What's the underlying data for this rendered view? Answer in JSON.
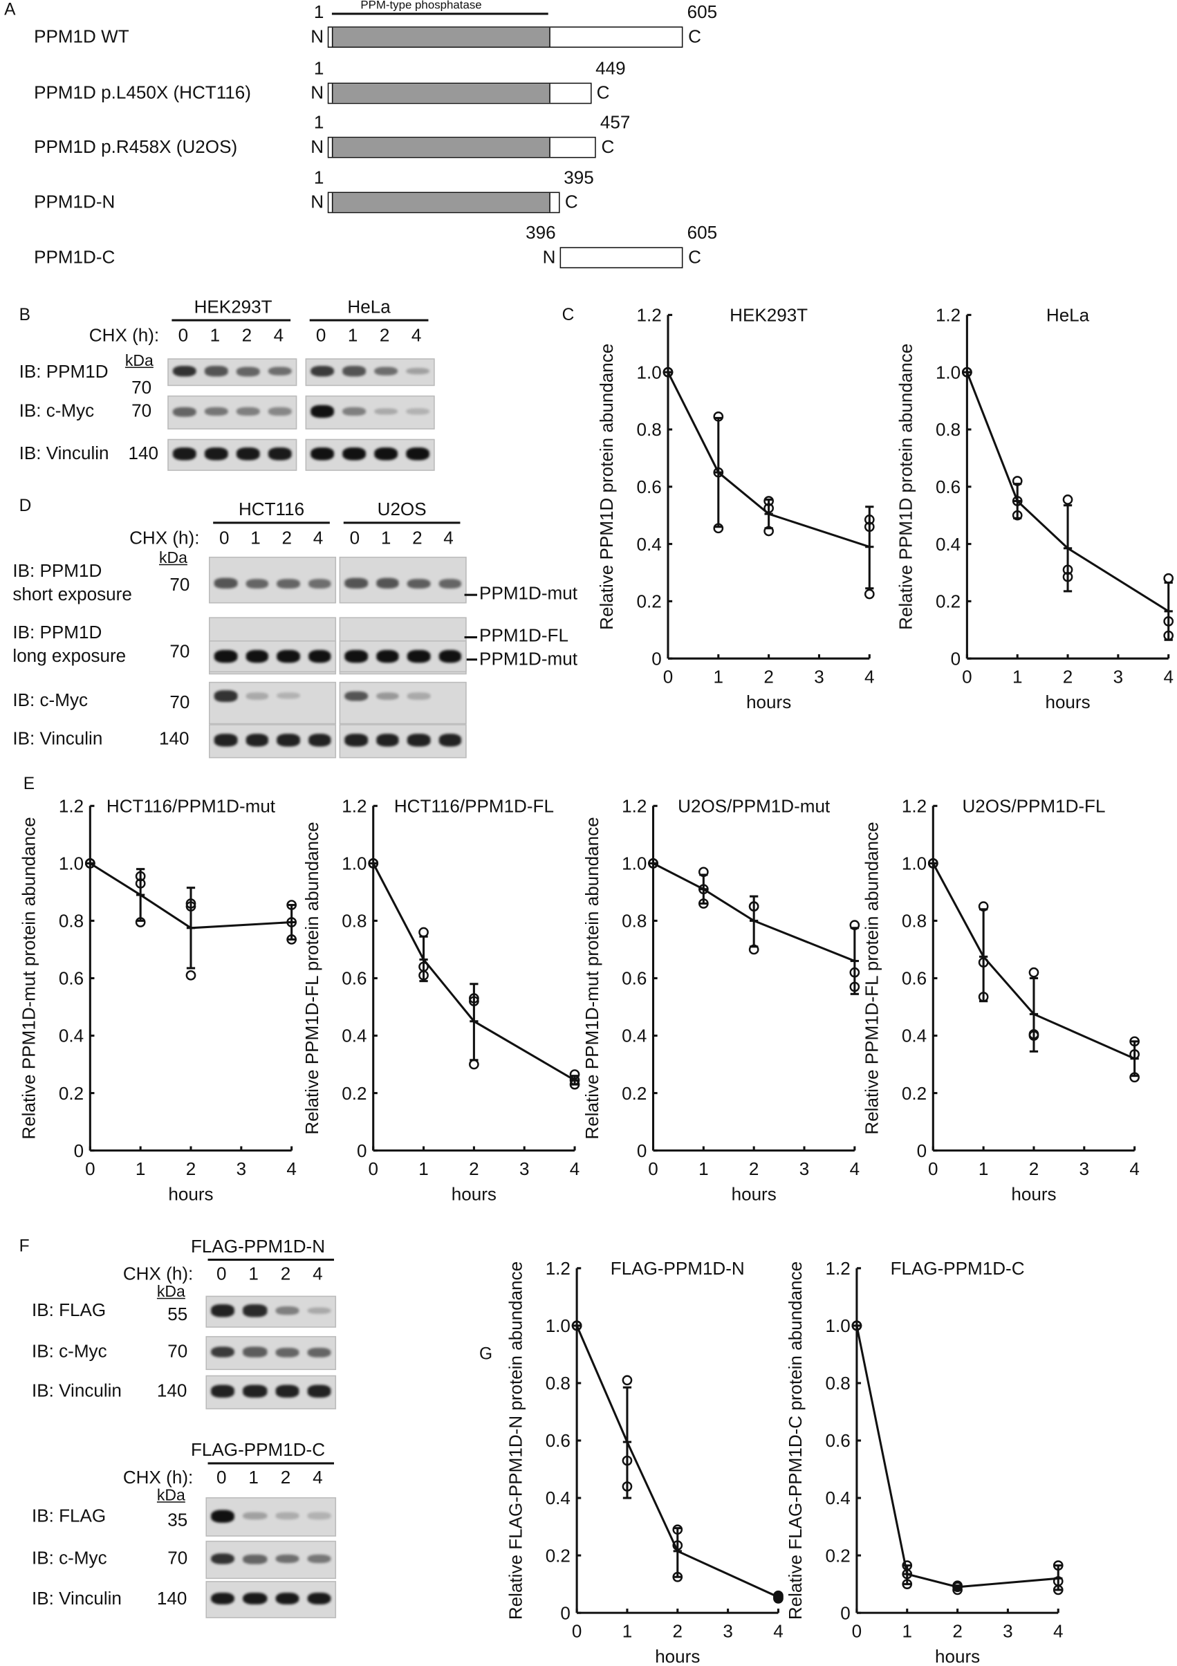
{
  "panel_labels": {
    "A": "A",
    "B": "B",
    "C": "C",
    "D": "D",
    "E": "E",
    "F": "F",
    "G": "G"
  },
  "panel_a": {
    "domain_label": "PPM-type phosphatase",
    "constructs": [
      {
        "name": "PPM1D WT",
        "start": "1",
        "end": "605",
        "n": "N",
        "c": "C",
        "aa_start": 1,
        "aa_end": 605
      },
      {
        "name": "PPM1D p.L450X (HCT116)",
        "start": "1",
        "end": "449",
        "n": "N",
        "c": "C",
        "aa_start": 1,
        "aa_end": 449
      },
      {
        "name": "PPM1D p.R458X (U2OS)",
        "start": "1",
        "end": "457",
        "n": "N",
        "c": "C",
        "aa_start": 1,
        "aa_end": 457
      },
      {
        "name": "PPM1D-N",
        "start": "1",
        "end": "395",
        "n": "N",
        "c": "C",
        "aa_start": 1,
        "aa_end": 395
      },
      {
        "name": "PPM1D-C",
        "start": "396",
        "end": "605",
        "n": "N",
        "c": "C",
        "aa_start": 396,
        "aa_end": 605
      }
    ]
  },
  "panel_b": {
    "cell_lines": [
      "HEK293T",
      "HeLa"
    ],
    "chx_label": "CHX (h):",
    "timepoints": [
      "0",
      "1",
      "2",
      "4"
    ],
    "kda_label": "kDa",
    "rows": [
      {
        "label": "IB: PPM1D",
        "kda": "70",
        "bands": [
          [
            0.8,
            0.6,
            0.5,
            0.45
          ],
          [
            0.75,
            0.6,
            0.45,
            0.15
          ]
        ]
      },
      {
        "label": "IB: c-Myc",
        "kda": "70",
        "bands": [
          [
            0.5,
            0.4,
            0.35,
            0.3
          ],
          [
            1,
            0.35,
            0.1,
            0.05
          ]
        ]
      },
      {
        "label": "IB: Vinculin",
        "kda": "140",
        "bands": [
          [
            0.95,
            0.95,
            0.95,
            0.95
          ],
          [
            1,
            1,
            1,
            1
          ]
        ]
      }
    ]
  },
  "panel_d": {
    "cell_lines": [
      "HCT116",
      "U2OS"
    ],
    "chx_label": "CHX (h):",
    "timepoints": [
      "0",
      "1",
      "2",
      "4"
    ],
    "kda_label": "kDa",
    "rows": [
      {
        "label": "IB: PPM1D",
        "label2": "short exposure",
        "kda": "70",
        "right": "PPM1D-mut",
        "bands": [
          [
            0.6,
            0.5,
            0.5,
            0.45
          ],
          [
            0.6,
            0.6,
            0.55,
            0.5
          ]
        ]
      },
      {
        "label": "IB: PPM1D",
        "label2": "long exposure",
        "kda": "70",
        "right": "PPM1D-FL",
        "right2": "PPM1D-mut",
        "bands": [
          [
            1,
            1,
            1,
            0.95
          ],
          [
            1,
            1,
            1,
            1
          ]
        ]
      },
      {
        "label": "IB: c-Myc",
        "kda": "70",
        "bands": [
          [
            0.8,
            0.1,
            0.05,
            0
          ],
          [
            0.6,
            0.2,
            0.1,
            0
          ]
        ]
      },
      {
        "label": "IB: Vinculin",
        "kda": "140",
        "bands": [
          [
            0.9,
            0.9,
            0.9,
            0.9
          ],
          [
            0.9,
            0.9,
            0.9,
            0.9
          ]
        ]
      }
    ]
  },
  "panel_f": {
    "blocks": [
      {
        "title": "FLAG-PPM1D-N",
        "chx_label": "CHX (h):",
        "timepoints": [
          "0",
          "1",
          "2",
          "4"
        ],
        "kda_label": "kDa",
        "rows": [
          {
            "label": "IB: FLAG",
            "kda": "55",
            "bands": [
              0.9,
              0.85,
              0.35,
              0.1
            ]
          },
          {
            "label": "IB: c-Myc",
            "kda": "70",
            "bands": [
              0.75,
              0.55,
              0.5,
              0.5
            ]
          },
          {
            "label": "IB: Vinculin",
            "kda": "140",
            "bands": [
              0.9,
              0.9,
              0.9,
              0.9
            ]
          }
        ]
      },
      {
        "title": "FLAG-PPM1D-C",
        "chx_label": "CHX (h):",
        "timepoints": [
          "0",
          "1",
          "2",
          "4"
        ],
        "kda_label": "kDa",
        "rows": [
          {
            "label": "IB: FLAG",
            "kda": "35",
            "bands": [
              1,
              0.15,
              0.08,
              0.05
            ]
          },
          {
            "label": "IB: c-Myc",
            "kda": "70",
            "bands": [
              0.8,
              0.5,
              0.45,
              0.4
            ]
          },
          {
            "label": "IB: Vinculin",
            "kda": "140",
            "bands": [
              0.95,
              0.95,
              0.95,
              0.95
            ]
          }
        ]
      }
    ]
  },
  "chart_data": [
    {
      "type": "line",
      "panel": "C",
      "title": "HEK293T",
      "xlabel": "hours",
      "ylabel": "Relative PPM1D protein abundance",
      "x": [
        0,
        1,
        2,
        4
      ],
      "xticks": [
        "0",
        "1",
        "2",
        "3",
        "4"
      ],
      "yticks": [
        "0",
        "0.2",
        "0.4",
        "0.6",
        "0.8",
        "1.0",
        "1.2"
      ],
      "ylim": [
        0,
        1.2
      ],
      "xlim": [
        0,
        4
      ],
      "mean": [
        1,
        0.65,
        0.505,
        0.39
      ],
      "error": [
        [
          1,
          1
        ],
        [
          0.46,
          0.84
        ],
        [
          0.455,
          0.555
        ],
        [
          0.245,
          0.53
        ]
      ],
      "points": [
        [
          1,
          1,
          1
        ],
        [
          0.845,
          0.65,
          0.455
        ],
        [
          0.55,
          0.525,
          0.445
        ],
        [
          0.485,
          0.46,
          0.225
        ]
      ]
    },
    {
      "type": "line",
      "panel": "C",
      "title": "HeLa",
      "xlabel": "hours",
      "ylabel": "Relative PPM1D protein abundance",
      "x": [
        0,
        1,
        2,
        4
      ],
      "xticks": [
        "0",
        "1",
        "2",
        "3",
        "4"
      ],
      "yticks": [
        "0",
        "0.2",
        "0.4",
        "0.6",
        "0.8",
        "1.0",
        "1.2"
      ],
      "ylim": [
        0,
        1.2
      ],
      "xlim": [
        0,
        4
      ],
      "mean": [
        1,
        0.55,
        0.385,
        0.165
      ],
      "error": [
        [
          1,
          1
        ],
        [
          0.49,
          0.61
        ],
        [
          0.235,
          0.535
        ],
        [
          0.065,
          0.265
        ]
      ],
      "points": [
        [
          1,
          1,
          1
        ],
        [
          0.62,
          0.55,
          0.5
        ],
        [
          0.555,
          0.31,
          0.285
        ],
        [
          0.28,
          0.13,
          0.08
        ]
      ]
    },
    {
      "type": "line",
      "panel": "E",
      "title": "HCT116/PPM1D-mut",
      "xlabel": "hours",
      "ylabel": "Relative PPM1D-mut protein abundance",
      "x": [
        0,
        1,
        2,
        4
      ],
      "xticks": [
        "0",
        "1",
        "2",
        "3",
        "4"
      ],
      "yticks": [
        "0",
        "0.2",
        "0.4",
        "0.6",
        "0.8",
        "1.0",
        "1.2"
      ],
      "ylim": [
        0,
        1.2
      ],
      "xlim": [
        0,
        4
      ],
      "mean": [
        1,
        0.89,
        0.775,
        0.795
      ],
      "error": [
        [
          1,
          1
        ],
        [
          0.8,
          0.98
        ],
        [
          0.635,
          0.915
        ],
        [
          0.735,
          0.855
        ]
      ],
      "points": [
        [
          1,
          1,
          1
        ],
        [
          0.955,
          0.93,
          0.795
        ],
        [
          0.86,
          0.85,
          0.61
        ],
        [
          0.855,
          0.795,
          0.735
        ]
      ]
    },
    {
      "type": "line",
      "panel": "E",
      "title": "HCT116/PPM1D-FL",
      "xlabel": "hours",
      "ylabel": "Relative PPM1D-FL protein abundance",
      "x": [
        0,
        1,
        2,
        4
      ],
      "xticks": [
        "0",
        "1",
        "2",
        "3",
        "4"
      ],
      "yticks": [
        "0",
        "0.2",
        "0.4",
        "0.6",
        "0.8",
        "1.0",
        "1.2"
      ],
      "ylim": [
        0,
        1.2
      ],
      "xlim": [
        0,
        4
      ],
      "mean": [
        1,
        0.665,
        0.45,
        0.245
      ],
      "error": [
        [
          1,
          1
        ],
        [
          0.59,
          0.745
        ],
        [
          0.315,
          0.58
        ],
        [
          0.23,
          0.26
        ]
      ],
      "points": [
        [
          1,
          1,
          1
        ],
        [
          0.76,
          0.64,
          0.61
        ],
        [
          0.53,
          0.52,
          0.3
        ],
        [
          0.265,
          0.245,
          0.23
        ]
      ]
    },
    {
      "type": "line",
      "panel": "E",
      "title": "U2OS/PPM1D-mut",
      "xlabel": "hours",
      "ylabel": "Relative PPM1D-mut protein abundance",
      "x": [
        0,
        1,
        2,
        4
      ],
      "xticks": [
        "0",
        "1",
        "2",
        "3",
        "4"
      ],
      "yticks": [
        "0",
        "0.2",
        "0.4",
        "0.6",
        "0.8",
        "1.0",
        "1.2"
      ],
      "ylim": [
        0,
        1.2
      ],
      "xlim": [
        0,
        4
      ],
      "mean": [
        1,
        0.91,
        0.8,
        0.66
      ],
      "error": [
        [
          1,
          1
        ],
        [
          0.86,
          0.96
        ],
        [
          0.71,
          0.885
        ],
        [
          0.545,
          0.775
        ]
      ],
      "points": [
        [
          1,
          1,
          1
        ],
        [
          0.97,
          0.91,
          0.86
        ],
        [
          0.85,
          0.85,
          0.7
        ],
        [
          0.785,
          0.62,
          0.57
        ]
      ]
    },
    {
      "type": "line",
      "panel": "E",
      "title": "U2OS/PPM1D-FL",
      "xlabel": "hours",
      "ylabel": "Relative PPM1D-FL protein abundance",
      "x": [
        0,
        1,
        2,
        4
      ],
      "xticks": [
        "0",
        "1",
        "2",
        "3",
        "4"
      ],
      "yticks": [
        "0",
        "0.2",
        "0.4",
        "0.6",
        "0.8",
        "1.0",
        "1.2"
      ],
      "ylim": [
        0,
        1.2
      ],
      "xlim": [
        0,
        4
      ],
      "mean": [
        1,
        0.675,
        0.475,
        0.32
      ],
      "error": [
        [
          1,
          1
        ],
        [
          0.52,
          0.84
        ],
        [
          0.345,
          0.6
        ],
        [
          0.26,
          0.38
        ]
      ],
      "points": [
        [
          1,
          1,
          1
        ],
        [
          0.85,
          0.655,
          0.535
        ],
        [
          0.62,
          0.405,
          0.4
        ],
        [
          0.38,
          0.335,
          0.255
        ]
      ]
    },
    {
      "type": "line",
      "panel": "G",
      "title": "FLAG-PPM1D-N",
      "xlabel": "hours",
      "ylabel": "Relative FLAG-PPM1D-N protein abundance",
      "x": [
        0,
        1,
        2,
        4
      ],
      "xticks": [
        "0",
        "1",
        "2",
        "3",
        "4"
      ],
      "yticks": [
        "0",
        "0.2",
        "0.4",
        "0.6",
        "0.8",
        "1.0",
        "1.2"
      ],
      "ylim": [
        0,
        1.2
      ],
      "xlim": [
        0,
        4
      ],
      "mean": [
        1,
        0.595,
        0.215,
        0.055
      ],
      "error": [
        [
          1,
          1
        ],
        [
          0.4,
          0.785
        ],
        [
          0.125,
          0.295
        ],
        [
          0.05,
          0.06
        ]
      ],
      "points": [
        [
          1,
          1,
          1
        ],
        [
          0.81,
          0.53,
          0.44
        ],
        [
          0.29,
          0.235,
          0.125
        ],
        [
          0.06,
          0.055,
          0.05
        ]
      ]
    },
    {
      "type": "line",
      "panel": "G",
      "title": "FLAG-PPM1D-C",
      "xlabel": "hours",
      "ylabel": "Relative FLAG-PPM1D-C protein abundance",
      "x": [
        0,
        1,
        2,
        4
      ],
      "xticks": [
        "0",
        "1",
        "2",
        "3",
        "4"
      ],
      "yticks": [
        "0",
        "0.2",
        "0.4",
        "0.6",
        "0.8",
        "1.0",
        "1.2"
      ],
      "ylim": [
        0,
        1.2
      ],
      "xlim": [
        0,
        4
      ],
      "mean": [
        1,
        0.135,
        0.09,
        0.12
      ],
      "error": [
        [
          1,
          1
        ],
        [
          0.1,
          0.165
        ],
        [
          0.085,
          0.095
        ],
        [
          0.08,
          0.165
        ]
      ],
      "points": [
        [
          1,
          1,
          1
        ],
        [
          0.165,
          0.135,
          0.1
        ],
        [
          0.095,
          0.09,
          0.08
        ],
        [
          0.165,
          0.11,
          0.08
        ]
      ]
    }
  ]
}
